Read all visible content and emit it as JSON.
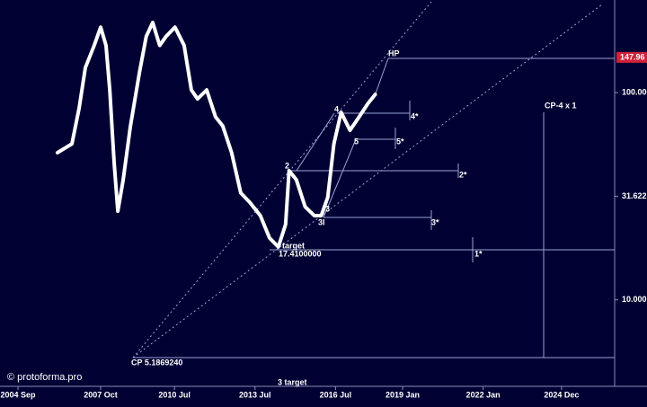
{
  "chart_data": {
    "type": "line",
    "x": [
      2006.14,
      2006.68,
      2006.95,
      2007.18,
      2007.51,
      2007.75,
      2007.95,
      2008.09,
      2008.25,
      2008.39,
      2008.59,
      2008.86,
      2009.2,
      2009.45,
      2009.69,
      2009.95,
      2010.19,
      2010.52,
      2010.86,
      2011.13,
      2011.36,
      2011.7,
      2012.03,
      2012.3,
      2012.63,
      2012.97,
      2013.3,
      2013.7,
      2014.04,
      2014.37,
      2014.64,
      2014.77,
      2015.04,
      2015.37,
      2015.71,
      2015.97,
      2016.21,
      2016.44,
      2016.71,
      2017.04,
      2017.38,
      2017.71,
      2017.98
    ],
    "series": [
      {
        "color": "#ffffff",
        "values": [
          51.3,
          56.6,
          84.4,
          132,
          169,
          207,
          169,
          103,
          46.4,
          26.8,
          38,
          69,
          126,
          187,
          218,
          169,
          187,
          207,
          169,
          103,
          93.3,
          103,
          76.4,
          69,
          51.3,
          32.8,
          29.6,
          25.5,
          19.9,
          18,
          23.1,
          42,
          38,
          28.1,
          25.5,
          25.5,
          31.2,
          56.6,
          80.3,
          65.8,
          76.4,
          88.7,
          98
        ]
      }
    ],
    "xlim": [
      2004,
      2026.9
    ],
    "xticks": [
      {
        "value": 2004.67,
        "label": "2004 Sep"
      },
      {
        "value": 2007.75,
        "label": "2007 Oct"
      },
      {
        "value": 2010.5,
        "label": "2010 Jul"
      },
      {
        "value": 2013.5,
        "label": "2013 Jul"
      },
      {
        "value": 2016.5,
        "label": "2016 Jul"
      },
      {
        "value": 2019.0,
        "label": "2019 Jan"
      },
      {
        "value": 2022.0,
        "label": "2022 Jan"
      },
      {
        "value": 2024.92,
        "label": "2024 Dec"
      }
    ],
    "ylim": [
      3.9,
      280
    ],
    "log_scale": true,
    "yticks": [
      {
        "value": 10,
        "label": "10.000"
      },
      {
        "value": 31.622,
        "label": "31.622"
      },
      {
        "value": 100,
        "label": "100.000"
      }
    ],
    "price_marker": 147.96,
    "annotations": [
      "HP",
      "CP-4 x 1",
      "4",
      "4*",
      "5",
      "5*",
      "2",
      "2*",
      "3",
      "3I",
      "3*",
      "1*",
      "target",
      "17.4100000",
      "CP 5.1869240",
      "3 target",
      "© protoforma.pro"
    ]
  }
}
